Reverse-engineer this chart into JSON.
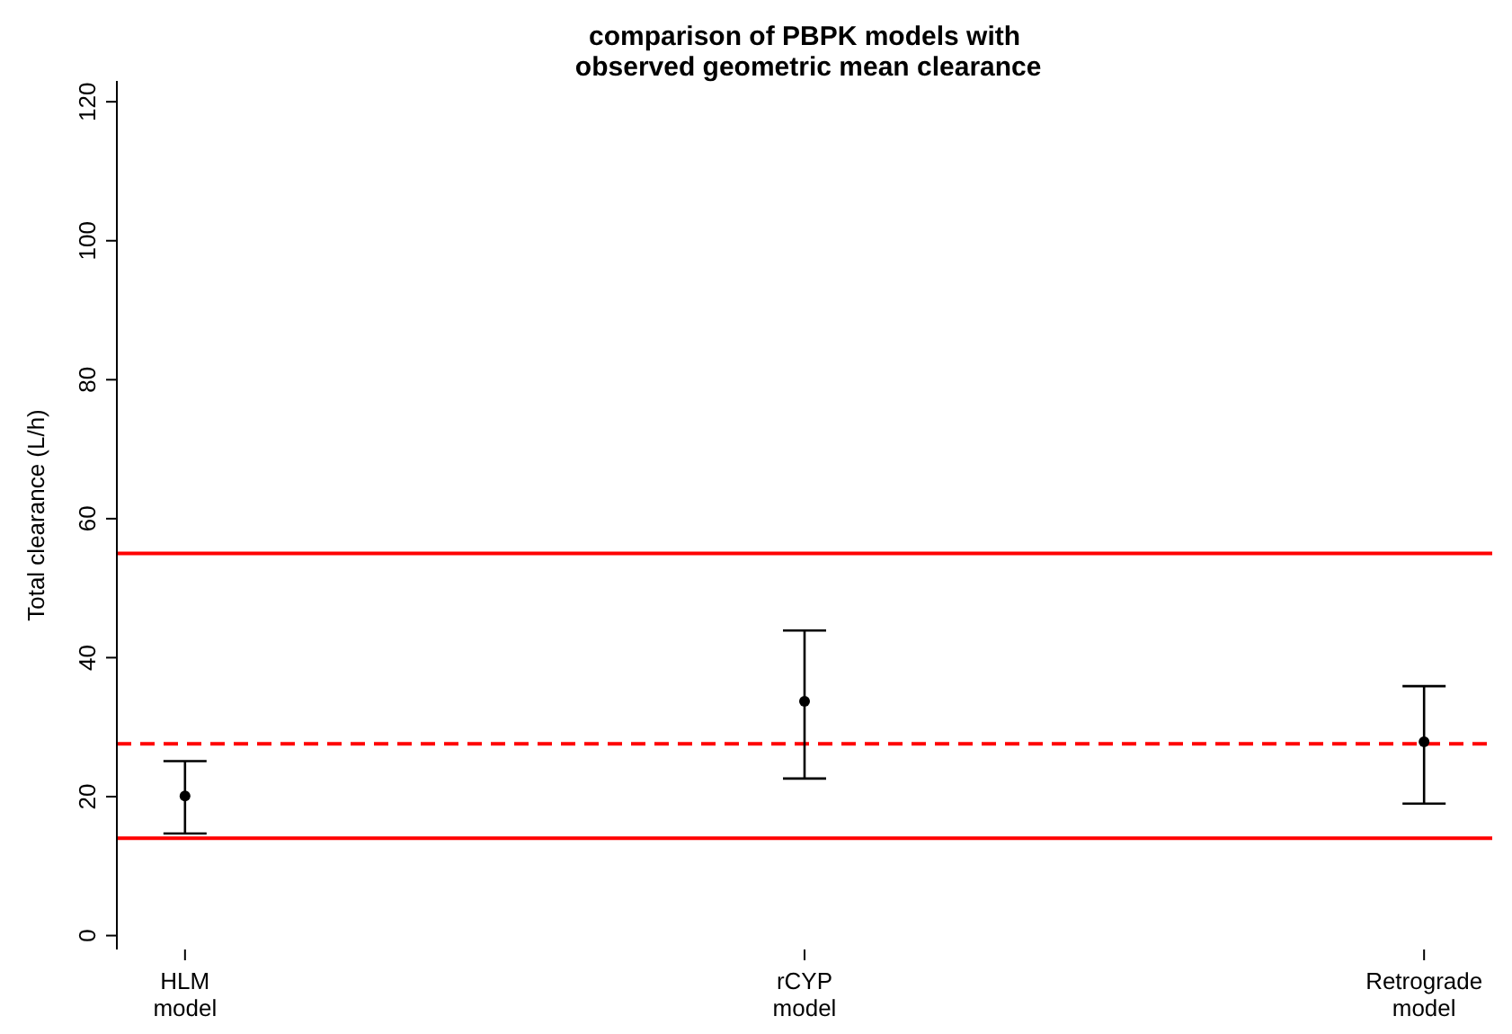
{
  "chart_data": {
    "type": "scatter",
    "title": "comparison of PBPK models with\n observed geometric mean clearance",
    "ylabel": "Total clearance (L/h)",
    "categories": [
      "HLM\nmodel",
      "rCYP\nmodel",
      "Retrograde\nmodel"
    ],
    "series": [
      {
        "color": "#000000",
        "values": [
          20.1,
          33.7,
          27.9
        ],
        "errors": [
          [
            14.7,
            25.1
          ],
          [
            22.6,
            43.9
          ],
          [
            19.0,
            35.9
          ]
        ]
      }
    ],
    "ylim": [
      -2,
      123
    ],
    "yticks": [
      0,
      20,
      40,
      60,
      80,
      100,
      120
    ],
    "ref_lines": [
      {
        "axis": "y",
        "value": 55,
        "color": "#ff0000",
        "line_style": "solid"
      },
      {
        "axis": "y",
        "value": 14,
        "color": "#ff0000",
        "line_style": "solid"
      },
      {
        "axis": "y",
        "value": 27.6,
        "color": "#ff0000",
        "line_style": "dashed"
      }
    ],
    "marker": "circle",
    "grid": false,
    "legend": false
  }
}
